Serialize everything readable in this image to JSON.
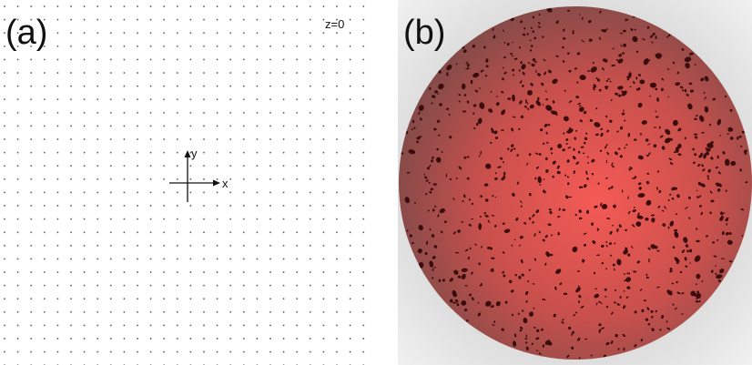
{
  "panels": [
    {
      "label": "(a)",
      "annotation": "z=0",
      "axis_x": "x",
      "axis_y": "y"
    },
    {
      "label": "(b)"
    }
  ]
}
